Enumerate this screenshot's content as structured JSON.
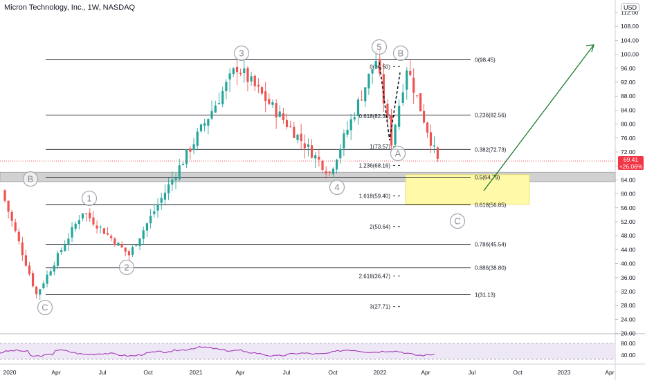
{
  "chart_data": {
    "type": "candlestick",
    "title": "Micron Technology, Inc., 1W, NASDAQ",
    "currency": "USD",
    "last_price": "69.41",
    "last_change": "+26.06%",
    "y_ticks": [
      "112.00",
      "108.00",
      "104.00",
      "100.00",
      "96.00",
      "92.00",
      "88.00",
      "84.00",
      "80.00",
      "76.00",
      "72.00",
      "68.00",
      "64.00",
      "60.00",
      "56.00",
      "52.00",
      "48.00",
      "44.00",
      "40.00",
      "36.00",
      "32.00",
      "28.00",
      "24.00",
      "20.00"
    ],
    "ylim": [
      17.5,
      116
    ],
    "x_ticks": [
      "2020",
      "Apr",
      "Jul",
      "Oct",
      "2021",
      "Apr",
      "Jul",
      "Oct",
      "2022",
      "Apr",
      "Jul",
      "Oct",
      "2023",
      "Apr"
    ],
    "rsi_ticks": [
      "80.00",
      "40.00"
    ],
    "fib_retracement_labels": [
      "0(98.45)",
      "0.236(82.56)",
      "0.382(72.73)",
      "0.5(64.79)",
      "0.618(56.85)",
      "0.786(45.54)",
      "0.886(38.80)",
      "1(31.13)"
    ],
    "fib_retracement_values": [
      98.45,
      82.56,
      72.73,
      64.79,
      56.85,
      45.54,
      38.8,
      31.13
    ],
    "fib_extension_labels": [
      "0(96.50)",
      "0.618(82.33)",
      "1(73.57)",
      "1.236(68.16)",
      "1.618(59.40)",
      "2(50.64)",
      "2.618(36.47)",
      "3(27.71)"
    ],
    "fib_extension_values": [
      96.5,
      82.33,
      73.57,
      68.16,
      59.4,
      50.64,
      36.47,
      27.71
    ],
    "wave_labels": [
      "B",
      "C",
      "1",
      "2",
      "3",
      "4",
      "5",
      "A",
      "B",
      "C"
    ],
    "support_zone": [
      63.5,
      66.2
    ],
    "target_zone": [
      57.0,
      65.5
    ],
    "key_points": [
      {
        "date": "2020-01",
        "price": 61
      },
      {
        "date": "2020-03",
        "price": 31.13
      },
      {
        "date": "2020-06",
        "price": 55
      },
      {
        "date": "2020-09",
        "price": 42.5
      },
      {
        "date": "2021-04",
        "price": 96.5
      },
      {
        "date": "2021-10",
        "price": 66
      },
      {
        "date": "2022-01",
        "price": 98.45
      },
      {
        "date": "2022-02",
        "price": 75
      },
      {
        "date": "2022-03",
        "price": 96.5
      },
      {
        "date": "2022-05",
        "price": 69.41
      }
    ],
    "colors": {
      "up": "#26a69a",
      "down": "#ef5350",
      "fib": "#131722",
      "rsi": "#9c27b0",
      "zone": "#c8c8c8",
      "target": "#fff9a8",
      "arrow": "#1b7a2a",
      "last": "#f23645"
    }
  }
}
